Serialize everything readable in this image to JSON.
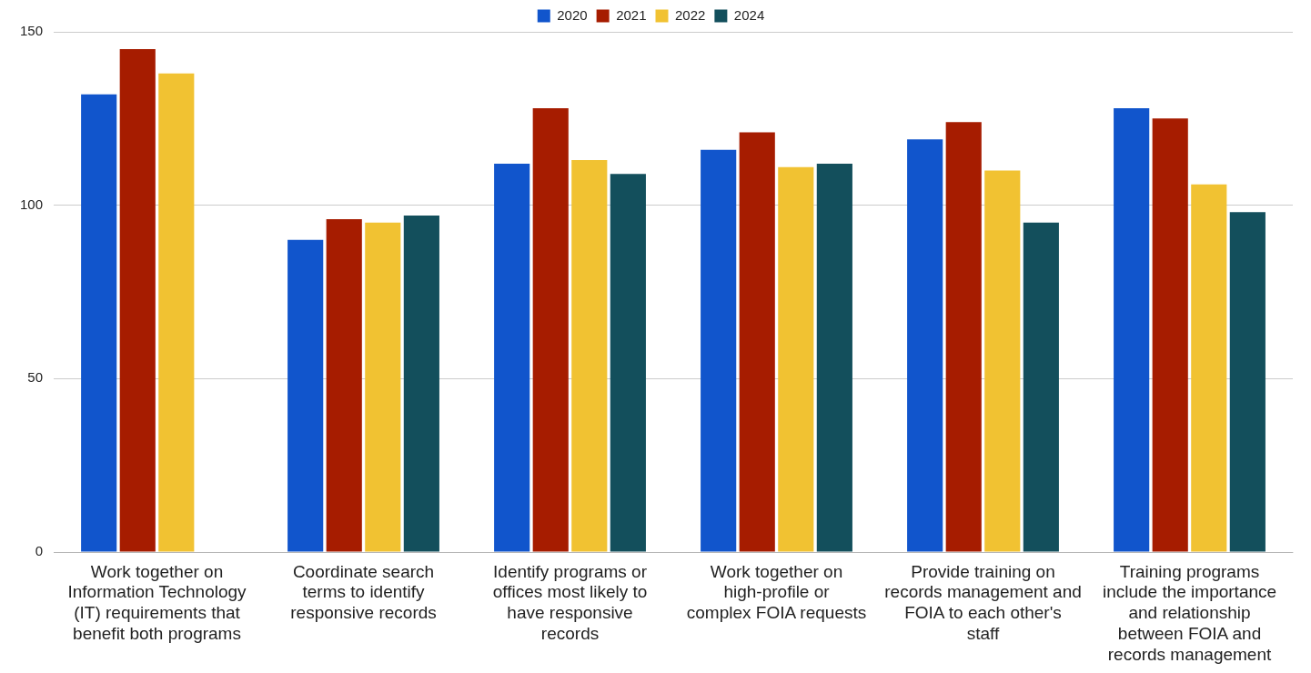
{
  "chart_data": {
    "type": "bar",
    "categories": [
      "Work together on Information Technology (IT) requirements that benefit both programs",
      "Coordinate search terms to identify responsive records",
      "Identify programs or offices most likely to have responsive records",
      "Work together on high-profile or complex FOIA requests",
      "Provide training on records management and FOIA to each other's staff",
      "Training programs include the importance and relationship between FOIA and records management"
    ],
    "series": [
      {
        "name": "2020",
        "color": "#1155cc",
        "values": [
          132,
          90,
          112,
          116,
          119,
          128
        ]
      },
      {
        "name": "2021",
        "color": "#a61c00",
        "values": [
          145,
          96,
          128,
          121,
          124,
          125
        ]
      },
      {
        "name": "2022",
        "color": "#f1c232",
        "values": [
          138,
          95,
          113,
          111,
          110,
          106
        ]
      },
      {
        "name": "2024",
        "color": "#134f5c",
        "values": [
          null,
          97,
          109,
          112,
          95,
          98
        ]
      }
    ],
    "ylim": [
      0,
      150
    ],
    "yticks": [
      0,
      50,
      100,
      150
    ],
    "grid": "y",
    "legend": "top"
  }
}
